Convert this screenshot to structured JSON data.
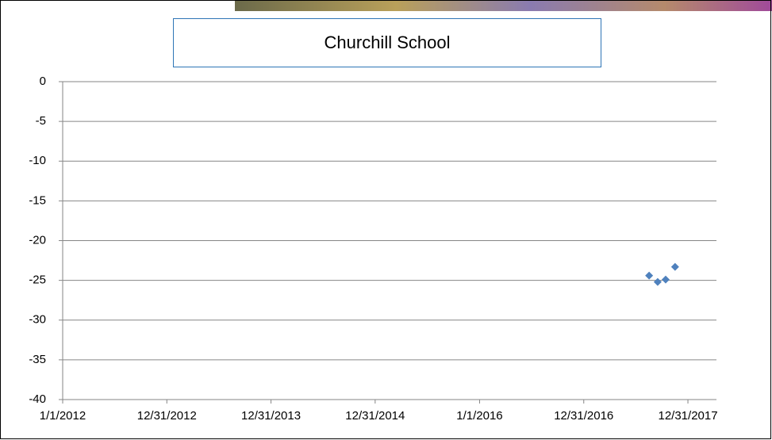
{
  "chart_data": {
    "type": "scatter",
    "title": "Churchill School",
    "series": [
      {
        "color": "#4f81bd",
        "x": [
          42964,
          42994,
          43022,
          43055
        ],
        "values": [
          -24.4,
          -25.2,
          -24.9,
          -23.3
        ]
      }
    ],
    "xlim": [
      40909,
      43200
    ],
    "xticks": [
      {
        "value": 40909,
        "label": "1/1/2012"
      },
      {
        "value": 41274,
        "label": "12/31/2012"
      },
      {
        "value": 41639,
        "label": "12/31/2013"
      },
      {
        "value": 42004,
        "label": "12/31/2014"
      },
      {
        "value": 42370,
        "label": "1/1/2016"
      },
      {
        "value": 42735,
        "label": "12/31/2016"
      },
      {
        "value": 43100,
        "label": "12/31/2017"
      }
    ],
    "ylim": [
      -40,
      0
    ],
    "yticks": [
      0,
      -5,
      -10,
      -15,
      -20,
      -25,
      -30,
      -35,
      -40
    ],
    "grid": true
  }
}
